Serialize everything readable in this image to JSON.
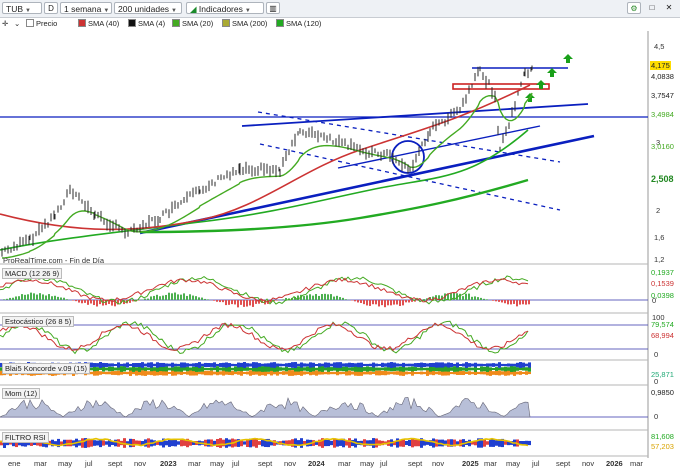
{
  "toolbar": {
    "symbol": "TUB",
    "period_letter": "D",
    "timeframe": "1 semana",
    "units": "200 unidades",
    "indicators": "Indicadores"
  },
  "legend": {
    "price": "Precio",
    "sma40": "SMA (40)",
    "sma4": "SMA (4)",
    "sma20": "SMA (20)",
    "sma200": "SMA (200)",
    "sma120": "SMA (120)"
  },
  "colors": {
    "sma40": "#cc3333",
    "sma4": "#111111",
    "sma20": "#44aa22",
    "sma200": "#aaaa33",
    "sma120": "#22aa22",
    "trendline": "#0a1fbf",
    "price": "#2a2a2a"
  },
  "price_axis": [
    "4,5",
    "4",
    "3,5",
    "3",
    "2,5",
    "2",
    "1,6",
    "1,2"
  ],
  "price_tags": [
    {
      "text": "4,175",
      "bg": "#ffdd00",
      "fg": "#000000"
    },
    {
      "text": "4,0838",
      "bg": "#ffffff",
      "fg": "#000000"
    },
    {
      "text": "3,7547",
      "bg": "#ffffff",
      "fg": "#000000"
    },
    {
      "text": "3,4984",
      "bg": "#ffffff",
      "fg": "#44aa22"
    },
    {
      "text": "3,0160",
      "bg": "#ffffff",
      "fg": "#44aa22"
    },
    {
      "text": "2,508",
      "bg": "#ffffff",
      "fg": "#228822"
    }
  ],
  "source_label": "ProRealTime.com - Fin de Día",
  "panels": {
    "macd": {
      "title": "MACD (12 26 9)",
      "values": [
        "0,1937",
        "0,1539",
        "0,0398"
      ],
      "axis": [
        "0"
      ]
    },
    "stoch": {
      "title": "Estocástico (26 8 5)",
      "values": [
        "79,574",
        "68,994"
      ],
      "axis": [
        "100",
        "0"
      ]
    },
    "blai5": {
      "title": "Blai5 Koncorde v.09 (15)",
      "values": [
        "25,871"
      ],
      "axis": [
        "0"
      ]
    },
    "mom": {
      "title": "Mom (12)",
      "values": [
        "0,9850"
      ],
      "axis": [
        "0"
      ]
    },
    "filtro": {
      "title": "FILTRO RSI",
      "values": [
        "81,608",
        "57,203"
      ],
      "axis": []
    }
  },
  "months": [
    "ene",
    "mar",
    "may",
    "jul",
    "sept",
    "nov",
    "2023",
    "mar",
    "may",
    "jul",
    "sept",
    "nov",
    "2024",
    "mar",
    "may",
    "jul",
    "sept",
    "nov",
    "2025",
    "mar",
    "may",
    "jul",
    "sept",
    "nov",
    "2026",
    "mar"
  ],
  "icons": {
    "settings": "gear-icon",
    "close": "close-icon",
    "restore": "window-icon"
  }
}
